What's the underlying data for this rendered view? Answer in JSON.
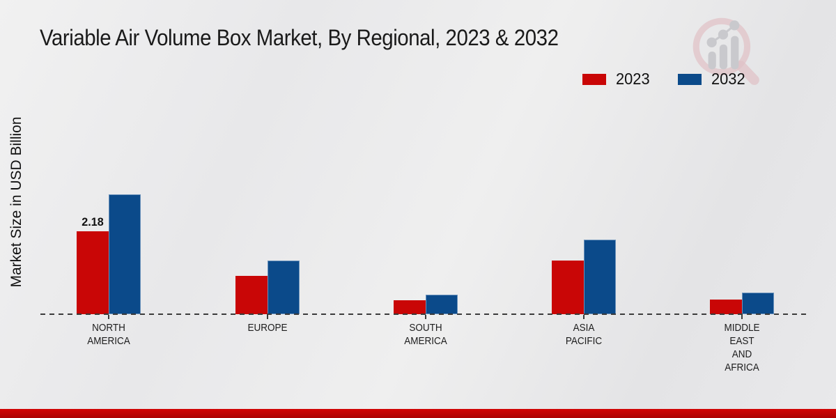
{
  "title": "Variable Air Volume Box Market, By Regional, 2023 & 2032",
  "ylabel": "Market Size in USD Billion",
  "colors": {
    "series_2023": "#c90606",
    "series_2032": "#0b4a8a",
    "footer_strip": "#c00303",
    "background": "#e9e9ea",
    "dashed_baseline": "#3b3b3b",
    "logo_ring": "#dfbabf",
    "logo_bars": "#c2c2c7"
  },
  "logo_icon": "magnifier-bar-chart-logo",
  "chart_data": {
    "type": "bar",
    "title": "Variable Air Volume Box Market, By Regional, 2023 & 2032",
    "ylabel": "Market Size in USD Billion",
    "xlabel": "",
    "categories": [
      "NORTH AMERICA",
      "EUROPE",
      "SOUTH AMERICA",
      "ASIA PACIFIC",
      "MIDDLE EAST AND AFRICA"
    ],
    "category_label_lines": [
      [
        "NORTH",
        "AMERICA"
      ],
      [
        "EUROPE"
      ],
      [
        "SOUTH",
        "AMERICA"
      ],
      [
        "ASIA",
        "PACIFIC"
      ],
      [
        "MIDDLE",
        "EAST",
        "AND",
        "AFRICA"
      ]
    ],
    "series": [
      {
        "name": "2023",
        "color": "#c90606",
        "values": [
          2.18,
          1.0,
          0.37,
          1.4,
          0.38
        ]
      },
      {
        "name": "2032",
        "color": "#0b4a8a",
        "values": [
          3.14,
          1.4,
          0.51,
          1.95,
          0.56
        ]
      }
    ],
    "annotations": [
      {
        "series": "2023",
        "category": "NORTH AMERICA",
        "text": "2.18"
      }
    ],
    "ylim": [
      0,
      3.5
    ],
    "grid": "none (dashed zero baseline only)",
    "legend_position": "top-right"
  }
}
